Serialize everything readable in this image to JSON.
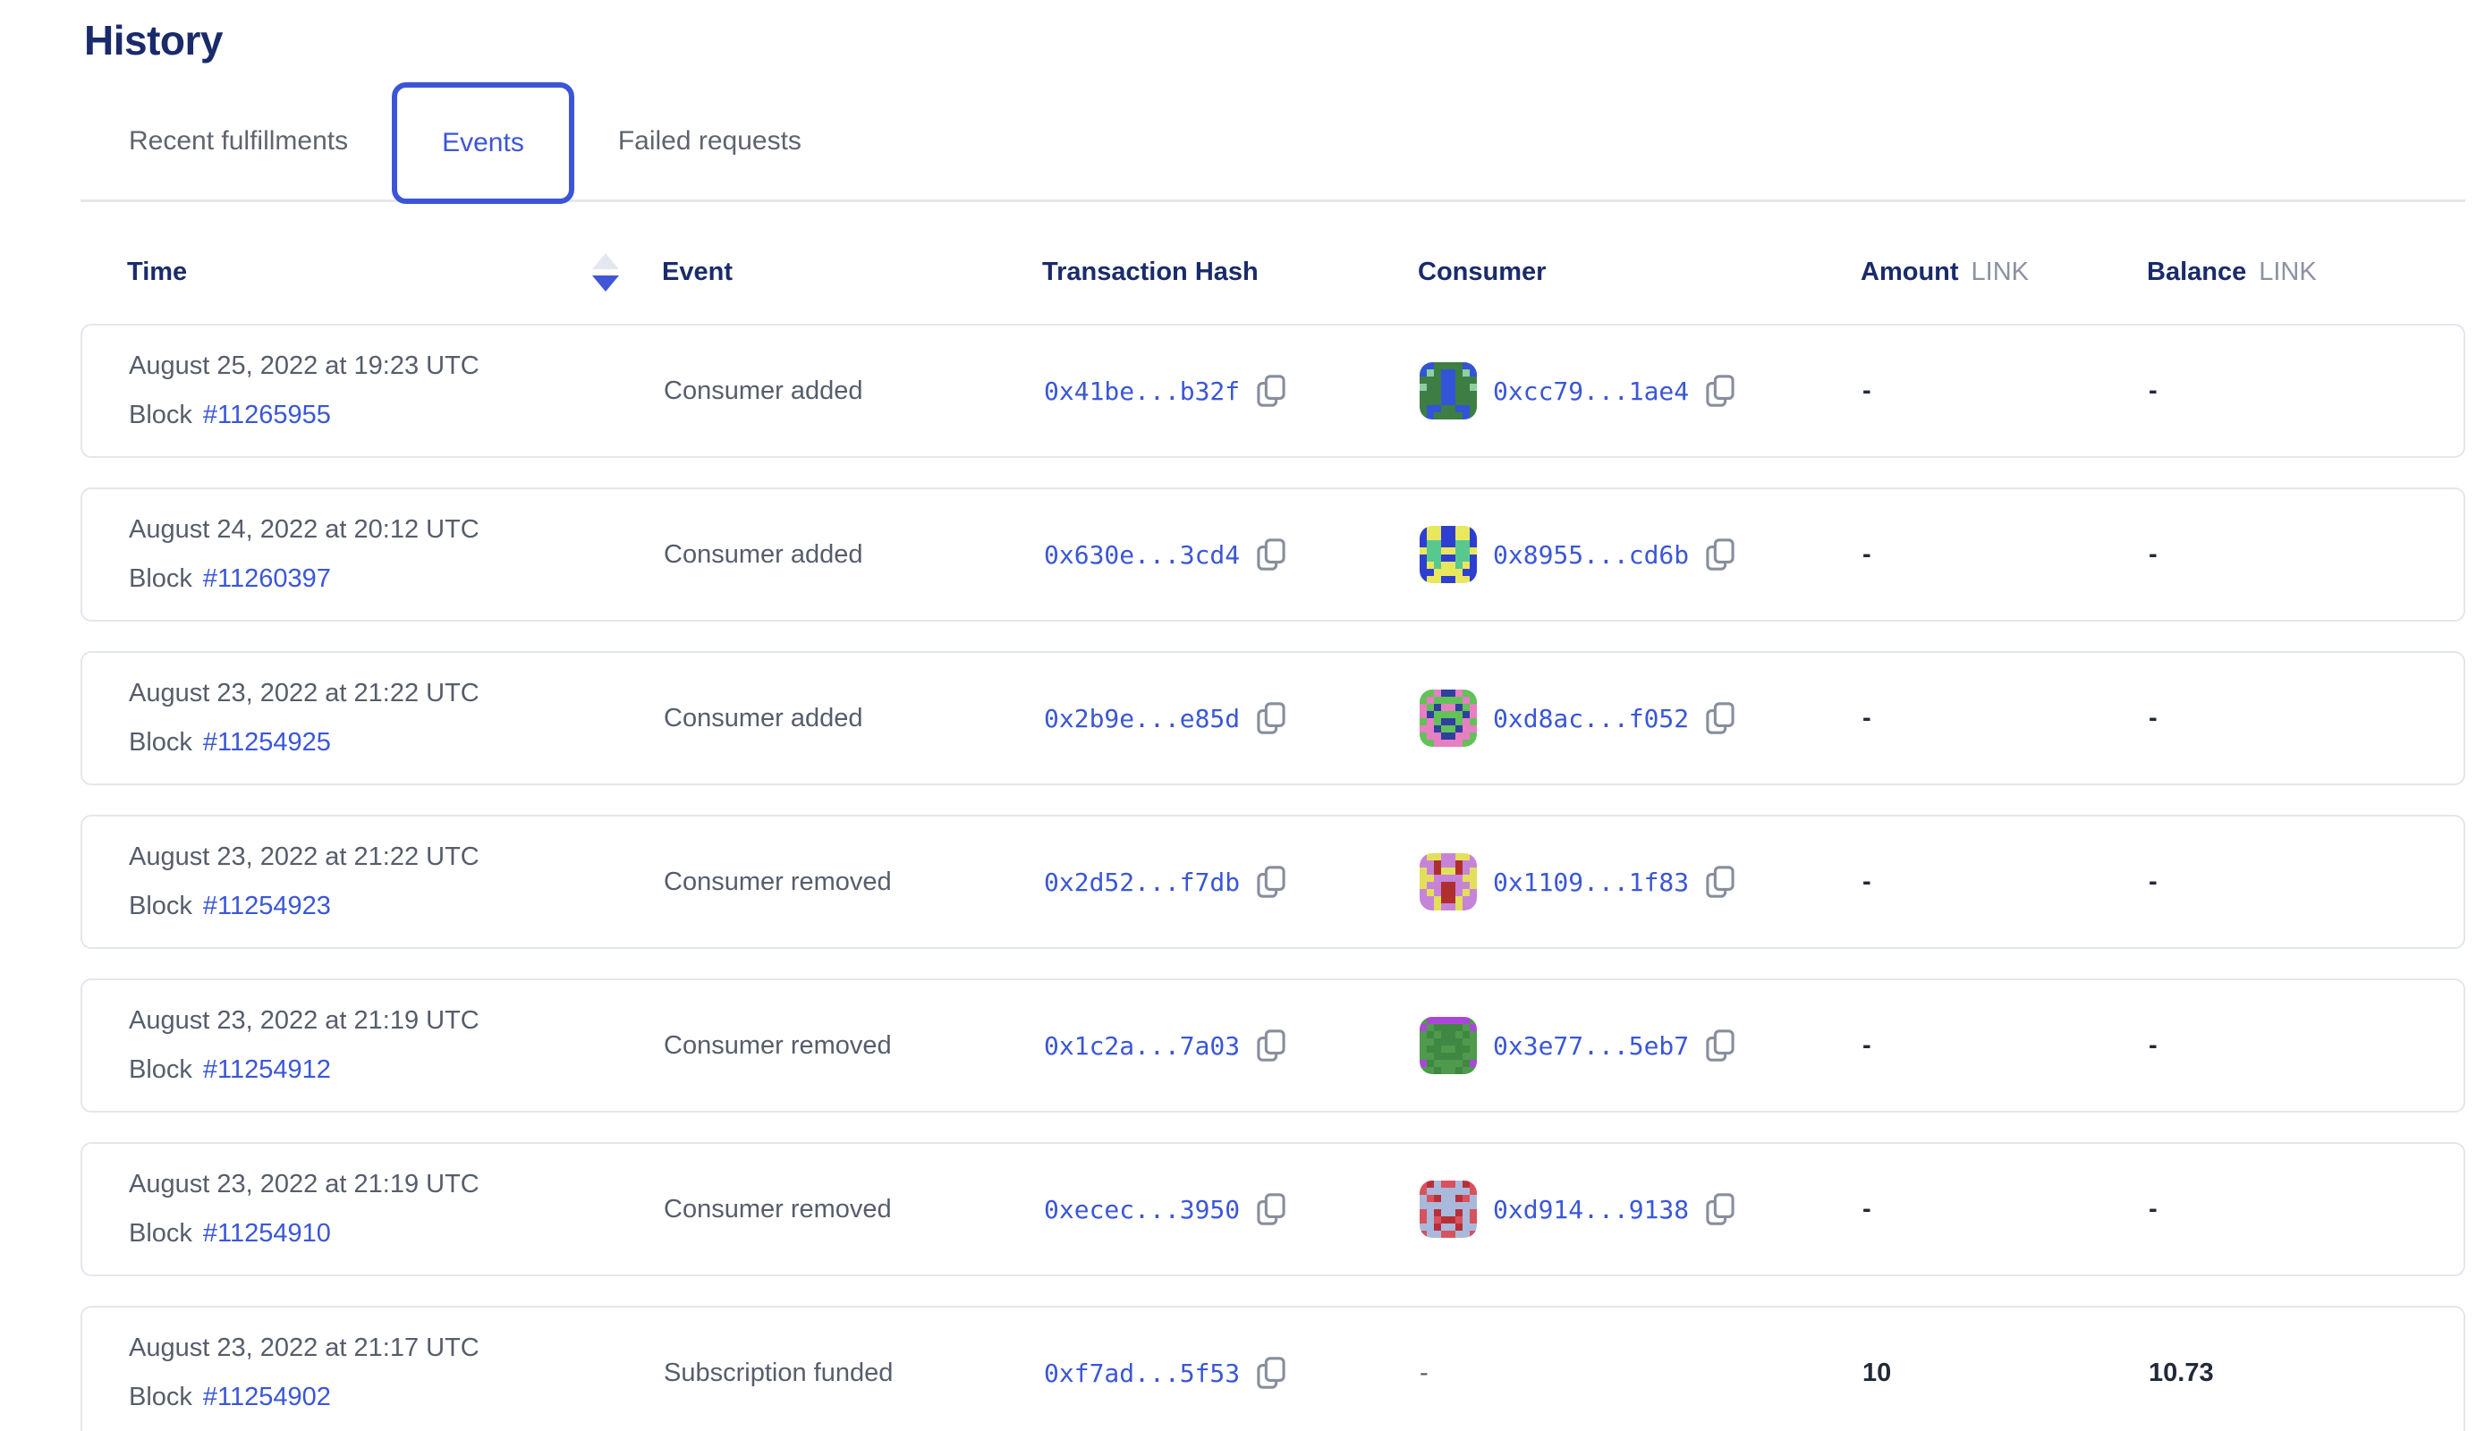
{
  "page": {
    "title": "History"
  },
  "tabs": [
    {
      "label": "Recent fulfillments",
      "active": false
    },
    {
      "label": "Events",
      "active": true
    },
    {
      "label": "Failed requests",
      "active": false
    }
  ],
  "table": {
    "columns": {
      "time": "Time",
      "event": "Event",
      "hash": "Transaction Hash",
      "consumer": "Consumer",
      "amount": "Amount",
      "amount_unit": "LINK",
      "balance": "Balance",
      "balance_unit": "LINK"
    },
    "sort": {
      "column": "Time",
      "direction": "desc"
    },
    "rows": [
      {
        "time": "August 25, 2022 at 19:23 UTC",
        "block_label": "Block",
        "block": "#11265955",
        "event": "Consumer added",
        "tx_hash": "0x41be...b32f",
        "consumer": "0xcc79...1ae4",
        "amount": "-",
        "balance": "-",
        "avatar": {
          "colors": [
            "#3e7d44",
            "#3354d6",
            "#8bd0a1"
          ],
          "grid": [
            "11000011",
            "12011021",
            "00011000",
            "20011002",
            "00011000",
            "00011000",
            "01100110",
            "01000010"
          ]
        }
      },
      {
        "time": "August 24, 2022 at 20:12 UTC",
        "block_label": "Block",
        "block": "#11260397",
        "event": "Consumer added",
        "tx_hash": "0x630e...3cd4",
        "consumer": "0x8955...cd6b",
        "amount": "-",
        "balance": "-",
        "avatar": {
          "colors": [
            "#2e3ed1",
            "#e9e75d",
            "#58c98e"
          ],
          "grid": [
            "01100110",
            "01100110",
            "02200220",
            "12211221",
            "02200220",
            "01211210",
            "00111100",
            "01100110"
          ]
        }
      },
      {
        "time": "August 23, 2022 at 21:22 UTC",
        "block_label": "Block",
        "block": "#11254925",
        "event": "Consumer added",
        "tx_hash": "0x2b9e...e85d",
        "consumer": "0xd8ac...f052",
        "amount": "-",
        "balance": "-",
        "avatar": {
          "colors": [
            "#63c159",
            "#e77fc2",
            "#2e3f9e"
          ],
          "grid": [
            "00122100",
            "01000010",
            "10211201",
            "12000021",
            "01022010",
            "11200211",
            "01122110",
            "00111100"
          ]
        }
      },
      {
        "time": "August 23, 2022 at 21:22 UTC",
        "block_label": "Block",
        "block": "#11254923",
        "event": "Consumer removed",
        "tx_hash": "0x2d52...f7db",
        "consumer": "0x1109...1f83",
        "amount": "-",
        "balance": "-",
        "avatar": {
          "colors": [
            "#c684d8",
            "#e4df5b",
            "#ae2f2e"
          ],
          "grid": [
            "01100110",
            "00200200",
            "10211201",
            "11000011",
            "10022001",
            "01022010",
            "00122100",
            "00100100"
          ]
        }
      },
      {
        "time": "August 23, 2022 at 21:19 UTC",
        "block_label": "Block",
        "block": "#11254912",
        "event": "Consumer removed",
        "tx_hash": "0x1c2a...7a03",
        "consumer": "0x3e77...5eb7",
        "amount": "-",
        "balance": "-",
        "avatar": {
          "colors": [
            "#4f9a4c",
            "#3f8743",
            "#ab47d8"
          ],
          "grid": [
            "02222220",
            "20111102",
            "01011010",
            "00111100",
            "01100110",
            "00111100",
            "21000012",
            "00100100"
          ]
        }
      },
      {
        "time": "August 23, 2022 at 21:19 UTC",
        "block_label": "Block",
        "block": "#11254910",
        "event": "Consumer removed",
        "tx_hash": "0xecec...3950",
        "consumer": "0xd914...9138",
        "amount": "-",
        "balance": "-",
        "avatar": {
          "colors": [
            "#d8525d",
            "#a9b9dc",
            "#b82f3a"
          ],
          "grid": [
            "02100120",
            "01111110",
            "10211201",
            "11111111",
            "01211210",
            "01022010",
            "11211211",
            "01100110"
          ]
        }
      },
      {
        "time": "August 23, 2022 at 21:17 UTC",
        "block_label": "Block",
        "block": "#11254902",
        "event": "Subscription funded",
        "tx_hash": "0xf7ad...5f53",
        "consumer": "-",
        "amount": "10",
        "balance": "10.73",
        "avatar": null
      }
    ]
  },
  "colors": {
    "heading_navy": "#1a2b6b",
    "link_blue": "#3a57d7",
    "active_tab_blue": "#3c55d6",
    "inactive_tab_gray": "#5f646d",
    "body_gray": "#565d6b",
    "unit_gray": "#8b92a2",
    "card_border": "#e3e6ec",
    "tab_underline": "#e5e6ea",
    "sort_inactive": "#e4e7f0",
    "copy_icon_gray": "#878e9c"
  }
}
